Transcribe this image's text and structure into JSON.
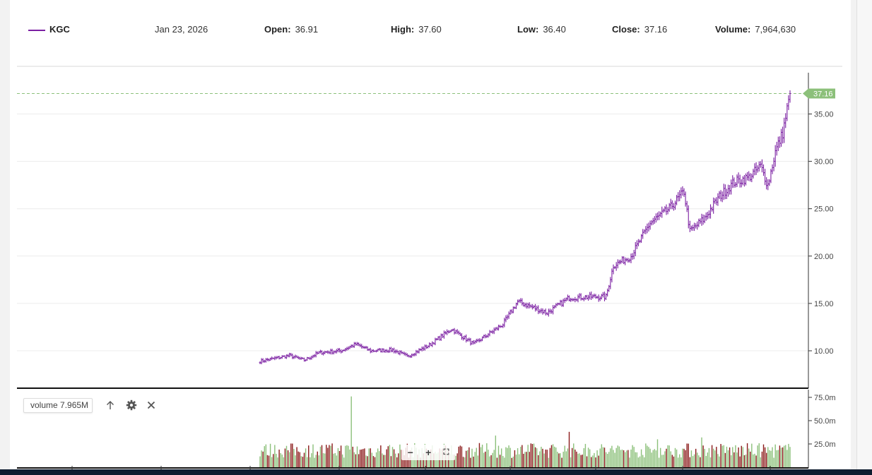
{
  "header": {
    "symbol": "KGC",
    "date": "Jan 23, 2026",
    "open_label": "Open:",
    "open": "36.91",
    "high_label": "High:",
    "high": "37.60",
    "low_label": "Low:",
    "low": "36.40",
    "close_label": "Close:",
    "close": "37.16",
    "volume_label": "Volume:",
    "volume": "7,964,630"
  },
  "volume_panel": {
    "label": "volume 7.965M",
    "zoom_out": "−",
    "zoom_in": "+",
    "fullscreen": "⛶"
  },
  "colors": {
    "price": "#7b1fa2",
    "last_price": "#8cc07a",
    "volume_up": "#8cc07a",
    "volume_down": "#8b1a1a"
  },
  "chart_data": [
    {
      "type": "line",
      "style": "ohlc-bars",
      "x_unit": "trading days",
      "price_ticks": [
        10.0,
        15.0,
        20.0,
        25.0,
        30.0,
        35.0
      ],
      "price_tick_labels": [
        "10.00",
        "15.00",
        "20.00",
        "25.00",
        "30.00",
        "35.00"
      ],
      "ylim": [
        6.0,
        39.0
      ],
      "last_price": 37.16,
      "last_price_label": "37.16",
      "keyframes": [
        [
          0,
          8.9
        ],
        [
          10,
          9.2
        ],
        [
          20,
          9.5
        ],
        [
          30,
          9.0
        ],
        [
          40,
          9.8
        ],
        [
          55,
          10.0
        ],
        [
          65,
          10.7
        ],
        [
          75,
          10.0
        ],
        [
          90,
          10.1
        ],
        [
          100,
          9.4
        ],
        [
          115,
          10.6
        ],
        [
          130,
          12.3
        ],
        [
          145,
          10.7
        ],
        [
          165,
          12.8
        ],
        [
          175,
          15.2
        ],
        [
          185,
          14.6
        ],
        [
          195,
          14.0
        ],
        [
          210,
          15.6
        ],
        [
          225,
          15.7
        ],
        [
          235,
          15.7
        ],
        [
          240,
          19.0
        ],
        [
          252,
          20.0
        ],
        [
          265,
          23.5
        ],
        [
          278,
          25.0
        ],
        [
          288,
          26.8
        ],
        [
          292,
          22.6
        ],
        [
          302,
          24.0
        ],
        [
          312,
          26.3
        ],
        [
          322,
          27.8
        ],
        [
          332,
          28.3
        ],
        [
          340,
          29.5
        ],
        [
          345,
          27.5
        ],
        [
          350,
          31.0
        ],
        [
          355,
          33.0
        ],
        [
          360,
          37.16
        ]
      ],
      "grid": true
    },
    {
      "type": "bar",
      "series": "volume",
      "y_ticks": [
        25.0,
        50.0,
        75.0
      ],
      "y_tick_labels": [
        "25.0m",
        "50.0m",
        "75.0m"
      ],
      "ylim": [
        0,
        80
      ],
      "typical_range": [
        10,
        26
      ],
      "spikes": [
        [
          62,
          76
        ],
        [
          160,
          34
        ],
        [
          210,
          38
        ],
        [
          270,
          30
        ],
        [
          300,
          32
        ]
      ]
    }
  ]
}
